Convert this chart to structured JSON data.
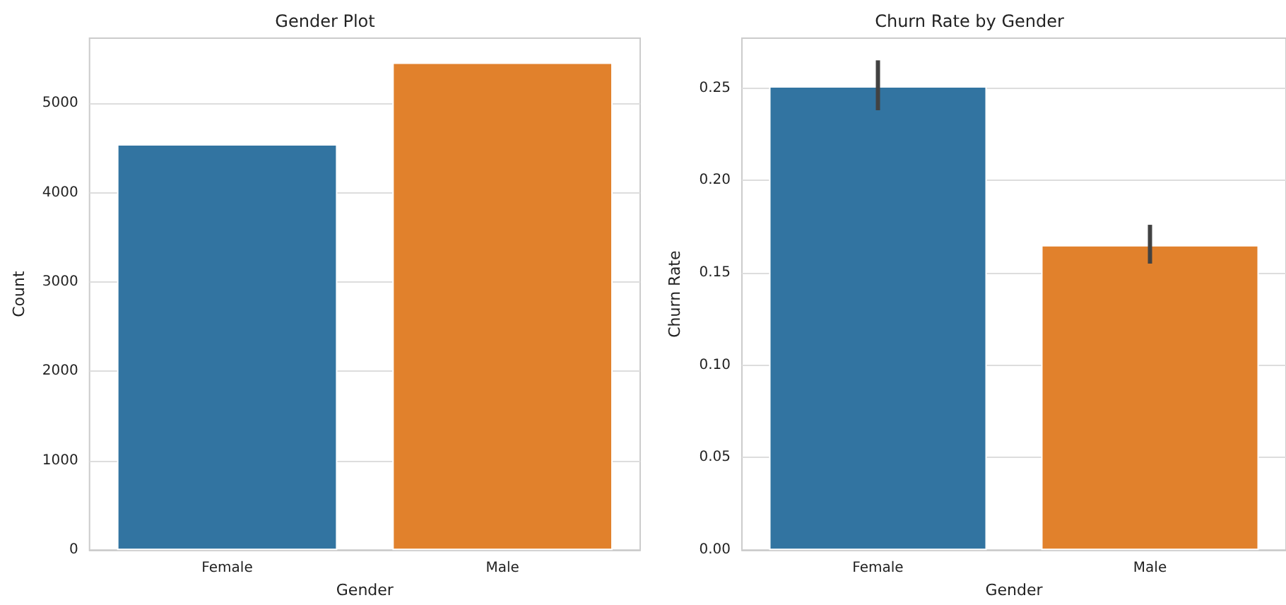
{
  "chart_data": [
    {
      "type": "bar",
      "title": "Gender Plot",
      "xlabel": "Gender",
      "ylabel": "Count",
      "categories": [
        "Female",
        "Male"
      ],
      "values": [
        4543,
        5457
      ],
      "colors": [
        "#3274a1",
        "#e1812c"
      ],
      "ylim": [
        0,
        5730
      ],
      "yticks": [
        0,
        1000,
        2000,
        3000,
        4000,
        5000
      ],
      "grid": "y"
    },
    {
      "type": "bar",
      "title": "Churn Rate by Gender",
      "xlabel": "Gender",
      "ylabel": "Churn Rate",
      "categories": [
        "Female",
        "Male"
      ],
      "values": [
        0.251,
        0.165
      ],
      "errors": [
        [
          0.238,
          0.265
        ],
        [
          0.155,
          0.176
        ]
      ],
      "colors": [
        "#3274a1",
        "#e1812c"
      ],
      "ylim": [
        0,
        0.277
      ],
      "yticks": [
        {
          "value": 0,
          "label": "0.00"
        },
        {
          "value": 0.05,
          "label": "0.05"
        },
        {
          "value": 0.1,
          "label": "0.10"
        },
        {
          "value": 0.15,
          "label": "0.15"
        },
        {
          "value": 0.2,
          "label": "0.20"
        },
        {
          "value": 0.25,
          "label": "0.25"
        }
      ],
      "grid": "y"
    }
  ]
}
